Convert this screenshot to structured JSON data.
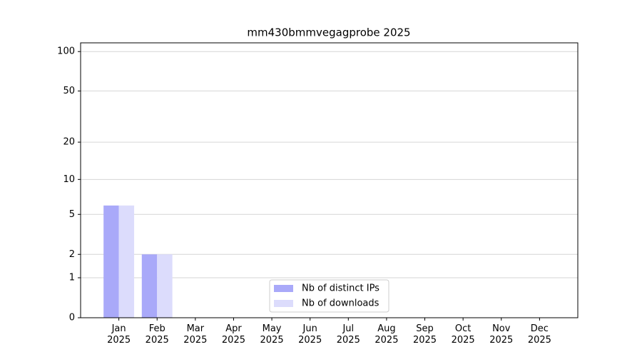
{
  "chart_data": {
    "type": "bar",
    "title": "mm430bmmvegagprobe 2025",
    "categories": [
      "Jan 2025",
      "Feb 2025",
      "Mar 2025",
      "Apr 2025",
      "May 2025",
      "Jun 2025",
      "Jul 2025",
      "Aug 2025",
      "Sep 2025",
      "Oct 2025",
      "Nov 2025",
      "Dec 2025"
    ],
    "series": [
      {
        "name": "Nb of distinct IPs",
        "color": "#a9a9f9",
        "values": [
          6,
          2,
          0,
          0,
          0,
          0,
          0,
          0,
          0,
          0,
          0,
          0
        ]
      },
      {
        "name": "Nb of downloads",
        "color": "#dcdcfc",
        "values": [
          6,
          2,
          0,
          0,
          0,
          0,
          0,
          0,
          0,
          0,
          0,
          0
        ]
      }
    ],
    "yscale": "log1p",
    "ylim": [
      0,
      116.5
    ],
    "yticks": [
      0,
      1,
      2,
      5,
      10,
      20,
      50,
      100
    ],
    "grid": true,
    "legend": "lower center"
  }
}
